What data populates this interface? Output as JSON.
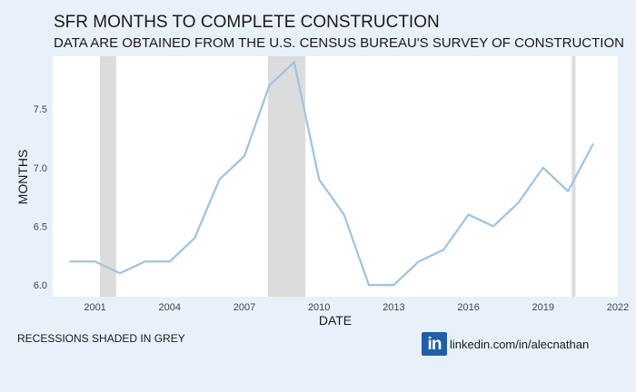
{
  "chart_data": {
    "type": "line",
    "title": "SFR MONTHS TO COMPLETE CONSTRUCTION",
    "subtitle": "DATA ARE OBTAINED FROM THE U.S. CENSUS BUREAU'S SURVEY OF CONSTRUCTION",
    "xlabel": "DATE",
    "ylabel": "MONTHS",
    "xlim": [
      1999.3,
      2022
    ],
    "ylim": [
      5.9,
      7.95
    ],
    "x_ticks": [
      2001,
      2004,
      2007,
      2010,
      2013,
      2016,
      2019,
      2022
    ],
    "y_ticks": [
      6.0,
      6.5,
      7.0,
      7.5
    ],
    "y_tick_labels": [
      "6.0",
      "6.5",
      "7.0",
      "7.5"
    ],
    "grid": false,
    "line_color": "#9cc3e4",
    "shade_color": "#dcdcdc",
    "recessions": [
      {
        "start": 2001.2,
        "end": 2001.85
      },
      {
        "start": 2007.95,
        "end": 2009.45
      },
      {
        "start": 2020.15,
        "end": 2020.3
      }
    ],
    "x": [
      2000,
      2001,
      2002,
      2003,
      2004,
      2005,
      2006,
      2007,
      2008,
      2009,
      2010,
      2011,
      2012,
      2013,
      2014,
      2015,
      2016,
      2017,
      2018,
      2019,
      2020,
      2021
    ],
    "values": [
      6.2,
      6.2,
      6.1,
      6.2,
      6.2,
      6.4,
      6.9,
      7.1,
      7.7,
      7.9,
      6.9,
      6.6,
      6.0,
      6.0,
      6.2,
      6.3,
      6.6,
      6.5,
      6.7,
      7.0,
      6.8,
      7.2
    ]
  },
  "footer": {
    "note": "RECESSIONS SHADED IN GREY",
    "logo_text": "in",
    "link": "linkedin.com/in/alecnathan"
  }
}
